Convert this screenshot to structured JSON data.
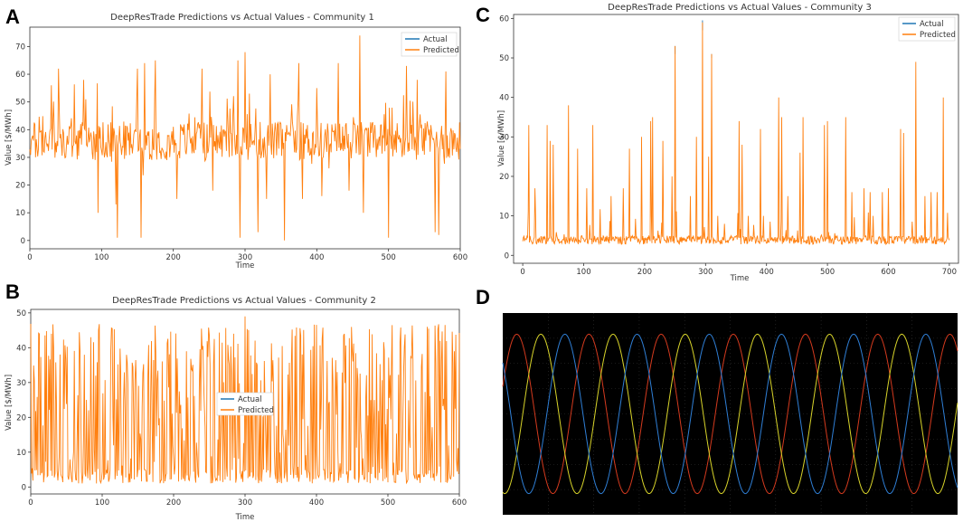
{
  "panels": [
    {
      "letter": "A"
    },
    {
      "letter": "B"
    },
    {
      "letter": "C"
    },
    {
      "letter": "D"
    }
  ],
  "colors": {
    "actual": "#1f77b4",
    "predicted": "#ff7f0e",
    "osc_bg": "#000000",
    "osc_red": "#d43a1e",
    "osc_yellow": "#d8d42a",
    "osc_blue": "#2f7fd6"
  },
  "chart_data": [
    {
      "id": "A",
      "type": "line",
      "title": "DeepResTrade Predictions vs Actual Values - Community 1",
      "xlabel": "Time",
      "ylabel": "Value [$/MWh]",
      "xlim": [
        0,
        600
      ],
      "ylim": [
        -3,
        77
      ],
      "xticks": [
        0,
        100,
        200,
        300,
        400,
        500,
        600
      ],
      "yticks": [
        0,
        10,
        20,
        30,
        40,
        50,
        60,
        70
      ],
      "legend": {
        "position": "top-right",
        "entries": [
          "Actual",
          "Predicted"
        ]
      },
      "series": [
        {
          "name": "Actual",
          "color": "#1f77b4"
        },
        {
          "name": "Predicted",
          "color": "#ff7f0e"
        }
      ],
      "spikes": [
        [
          8,
          30
        ],
        [
          30,
          56
        ],
        [
          40,
          62
        ],
        [
          75,
          58
        ],
        [
          80,
          34
        ],
        [
          95,
          10
        ],
        [
          120,
          13
        ],
        [
          122,
          1
        ],
        [
          150,
          62
        ],
        [
          155,
          1
        ],
        [
          160,
          64
        ],
        [
          175,
          65
        ],
        [
          205,
          15
        ],
        [
          240,
          62
        ],
        [
          255,
          18
        ],
        [
          290,
          65
        ],
        [
          293,
          1
        ],
        [
          300,
          68
        ],
        [
          318,
          3
        ],
        [
          330,
          15
        ],
        [
          335,
          60
        ],
        [
          355,
          0
        ],
        [
          375,
          64
        ],
        [
          380,
          15
        ],
        [
          400,
          55
        ],
        [
          407,
          16
        ],
        [
          430,
          64
        ],
        [
          445,
          18
        ],
        [
          460,
          74
        ],
        [
          465,
          10
        ],
        [
          500,
          1
        ],
        [
          525,
          63
        ],
        [
          540,
          58
        ],
        [
          565,
          3
        ],
        [
          570,
          2
        ],
        [
          580,
          61
        ]
      ]
    },
    {
      "id": "B",
      "type": "line",
      "title": "DeepResTrade Predictions vs Actual Values - Community 2",
      "xlabel": "Time",
      "ylabel": "Value [$/MWh]",
      "xlim": [
        0,
        600
      ],
      "ylim": [
        -2,
        51
      ],
      "xticks": [
        0,
        100,
        200,
        300,
        400,
        500,
        600
      ],
      "yticks": [
        0,
        10,
        20,
        30,
        40,
        50
      ],
      "legend": {
        "position": "center",
        "entries": [
          "Actual",
          "Predicted"
        ]
      },
      "series": [
        {
          "name": "Actual",
          "color": "#1f77b4"
        },
        {
          "name": "Predicted",
          "color": "#ff7f0e"
        }
      ]
    },
    {
      "id": "C",
      "type": "line",
      "title": "DeepResTrade Predictions vs Actual Values - Community 3",
      "xlabel": "Time",
      "ylabel": "Value [$/MWh]",
      "xlim": [
        -15,
        715
      ],
      "ylim": [
        -2,
        61
      ],
      "xticks": [
        0,
        100,
        200,
        300,
        400,
        500,
        600,
        700
      ],
      "yticks": [
        0,
        10,
        20,
        30,
        40,
        50,
        60
      ],
      "legend": {
        "position": "top-right",
        "entries": [
          "Actual",
          "Predicted"
        ]
      },
      "series": [
        {
          "name": "Actual",
          "color": "#1f77b4"
        },
        {
          "name": "Predicted",
          "color": "#ff7f0e"
        }
      ],
      "spikes": [
        [
          10,
          33
        ],
        [
          20,
          17
        ],
        [
          40,
          33
        ],
        [
          45,
          29
        ],
        [
          50,
          28
        ],
        [
          75,
          38
        ],
        [
          90,
          27
        ],
        [
          105,
          17
        ],
        [
          115,
          33
        ],
        [
          145,
          15
        ],
        [
          165,
          17
        ],
        [
          175,
          27
        ],
        [
          195,
          30
        ],
        [
          210,
          34
        ],
        [
          213,
          35
        ],
        [
          230,
          29
        ],
        [
          245,
          20
        ],
        [
          250,
          53
        ],
        [
          275,
          15
        ],
        [
          285,
          30
        ],
        [
          295,
          59
        ],
        [
          305,
          25
        ],
        [
          310,
          51
        ],
        [
          320,
          10
        ],
        [
          355,
          34
        ],
        [
          360,
          28
        ],
        [
          370,
          10
        ],
        [
          390,
          32
        ],
        [
          395,
          10
        ],
        [
          420,
          40
        ],
        [
          425,
          35
        ],
        [
          435,
          15
        ],
        [
          455,
          26
        ],
        [
          460,
          35
        ],
        [
          495,
          33
        ],
        [
          500,
          34
        ],
        [
          530,
          35
        ],
        [
          540,
          16
        ],
        [
          560,
          17
        ],
        [
          570,
          16
        ],
        [
          575,
          10
        ],
        [
          590,
          16
        ],
        [
          600,
          17
        ],
        [
          620,
          32
        ],
        [
          625,
          31
        ],
        [
          645,
          49
        ],
        [
          660,
          15
        ],
        [
          670,
          16
        ],
        [
          680,
          16
        ],
        [
          690,
          40
        ]
      ]
    },
    {
      "id": "D",
      "type": "line",
      "series": [
        {
          "color": "#d43a1e",
          "phase_deg": 0
        },
        {
          "color": "#d8d42a",
          "phase_deg": 120
        },
        {
          "color": "#2f7fd6",
          "phase_deg": 240
        }
      ],
      "cycles": 6.3,
      "grid": true
    }
  ]
}
